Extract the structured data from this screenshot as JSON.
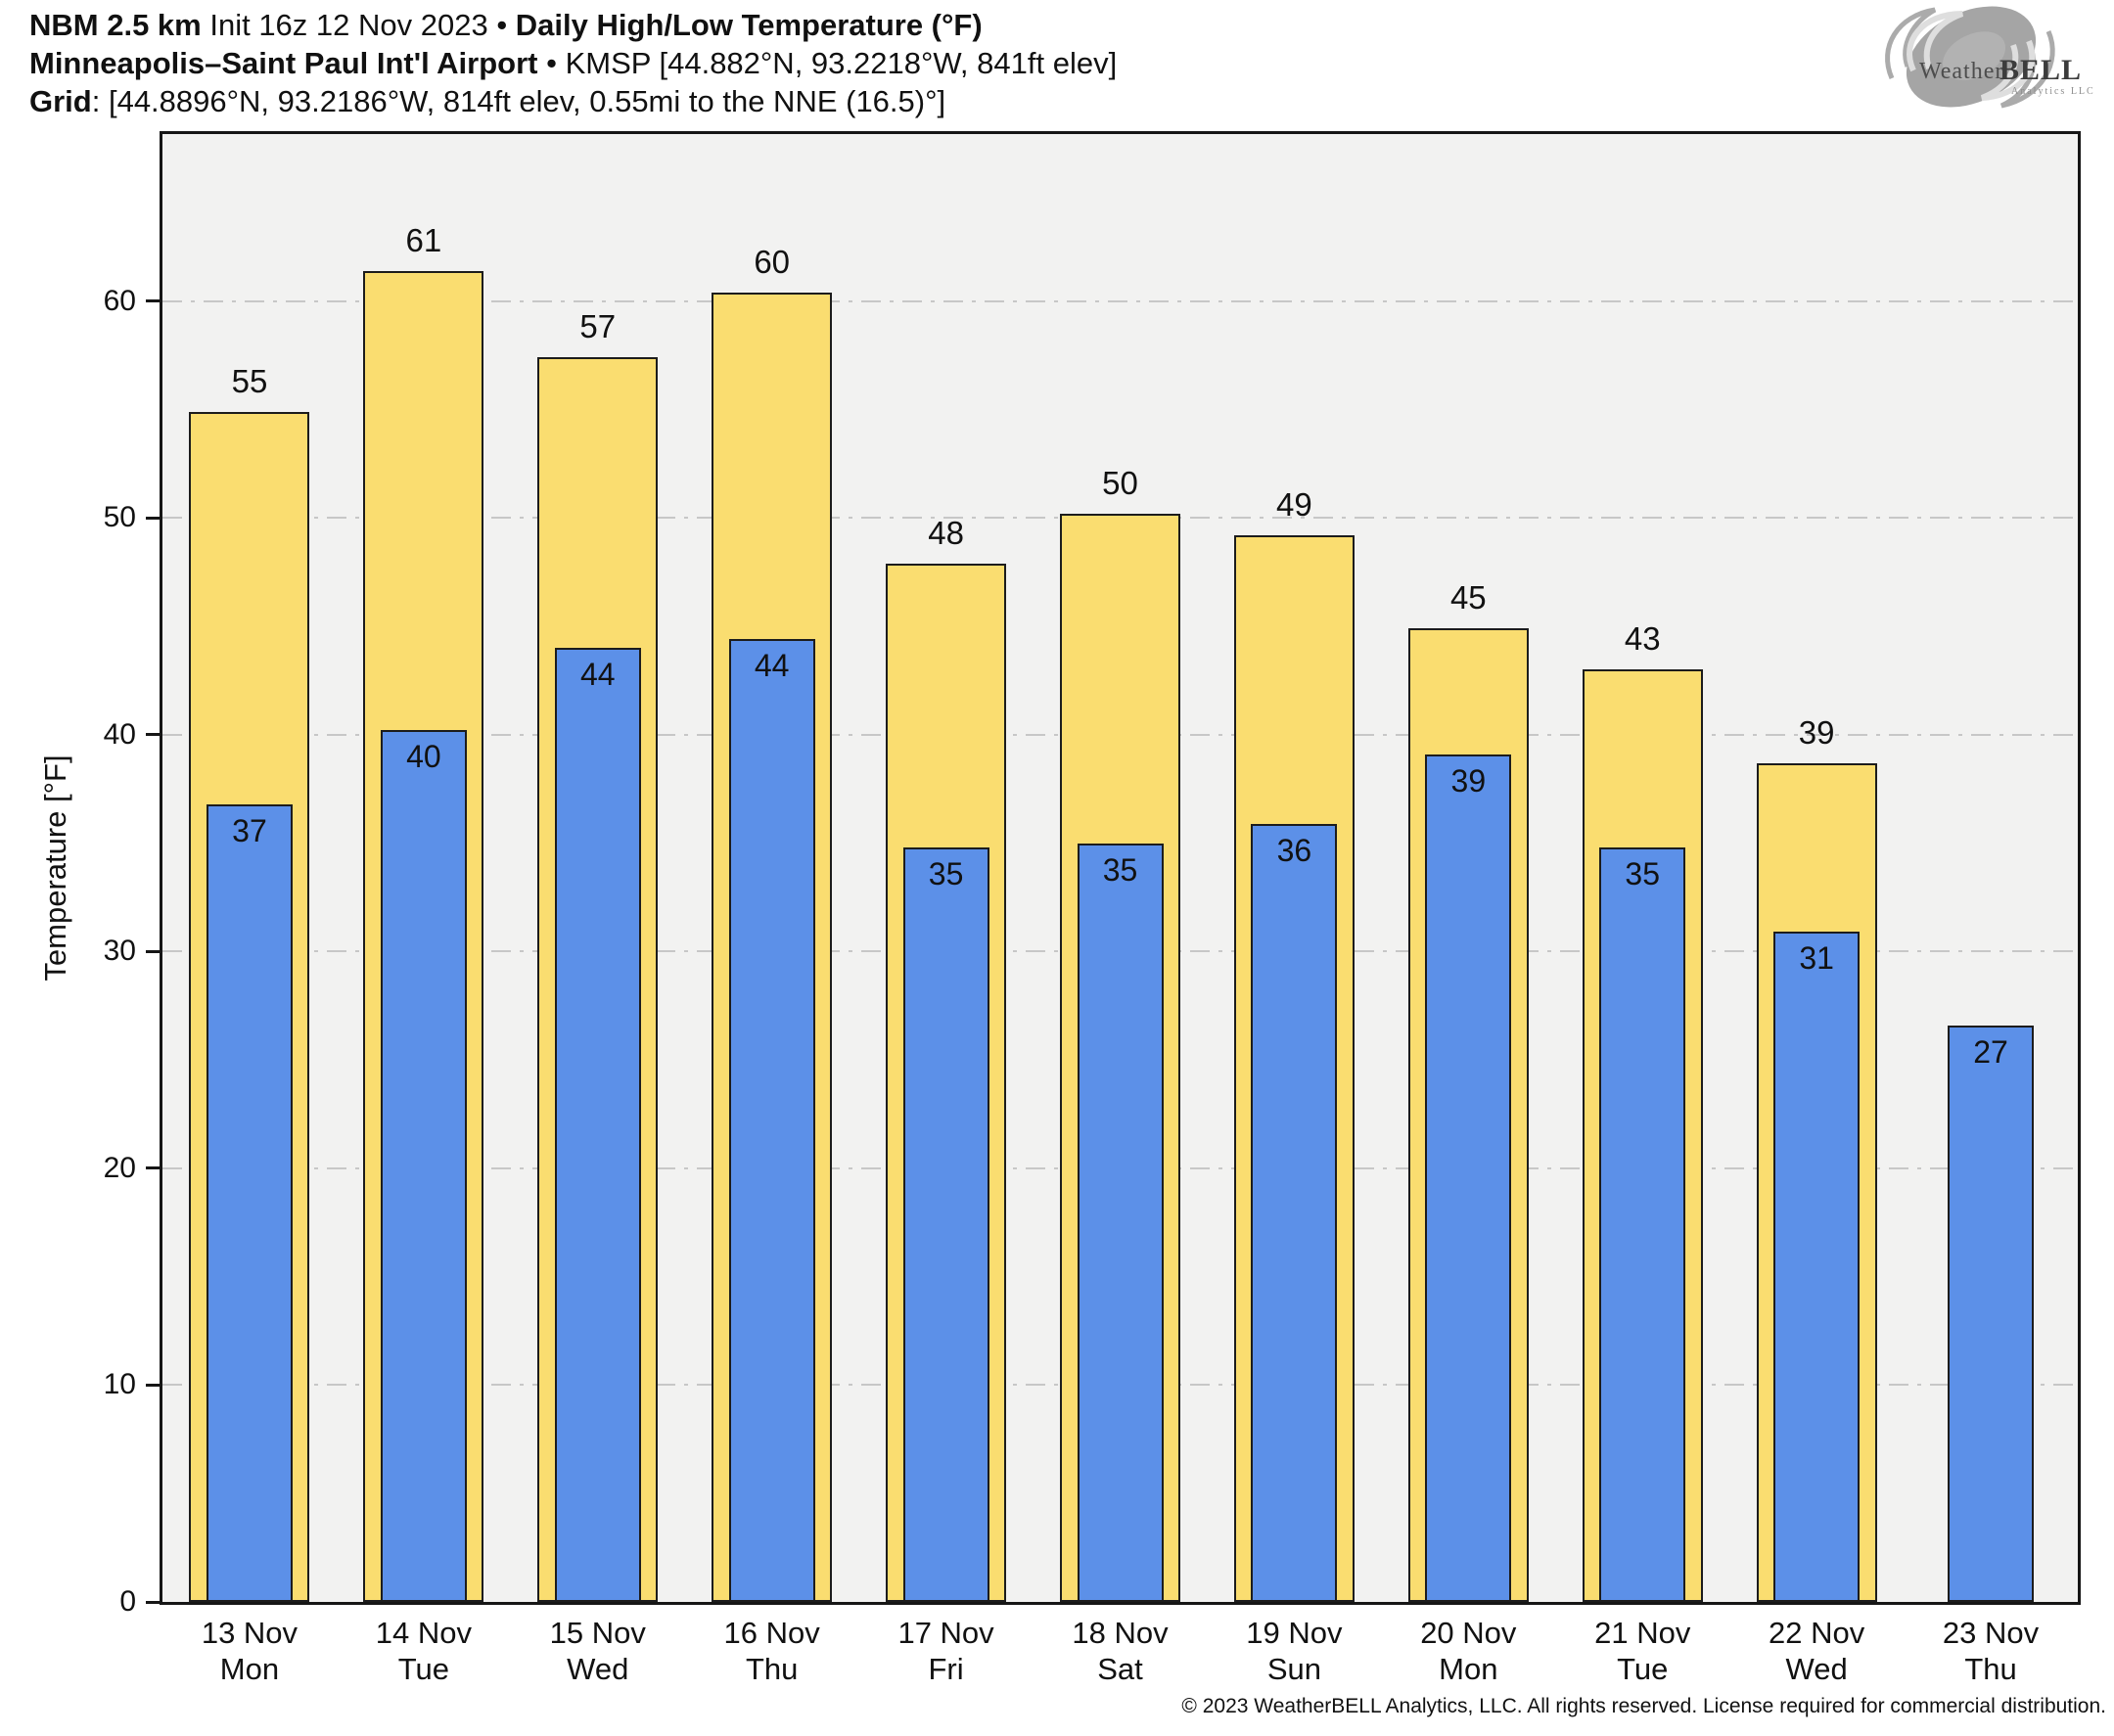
{
  "header": {
    "line1": {
      "model": "NBM 2.5 km",
      "middle": " Init 16z 12 Nov 2023 • ",
      "title": "Daily High/Low Temperature (°F)"
    },
    "line2": {
      "station": "Minneapolis–Saint Paul Int'l Airport",
      "rest": " • KMSP [44.882°N, 93.2218°W, 841ft elev]"
    },
    "line3": {
      "label": "Grid",
      "rest": ": [44.8896°N, 93.2186°W, 814ft elev, 0.55mi to the NNE (16.5)°]"
    }
  },
  "logo": {
    "brand_weather": "Weather",
    "brand_bell": "BELL",
    "subtitle": "Analytics LLC"
  },
  "chart_data": {
    "type": "bar",
    "title": "Daily High/Low Temperature (°F)",
    "xlabel": "",
    "ylabel": "Temperature [°F]",
    "ylim": [
      0,
      67.7
    ],
    "yticks": [
      0,
      10,
      20,
      30,
      40,
      50,
      60
    ],
    "grid": "horizontal dash-dot",
    "legend": "none",
    "categories": [
      {
        "date": "13 Nov",
        "day": "Mon"
      },
      {
        "date": "14 Nov",
        "day": "Tue"
      },
      {
        "date": "15 Nov",
        "day": "Wed"
      },
      {
        "date": "16 Nov",
        "day": "Thu"
      },
      {
        "date": "17 Nov",
        "day": "Fri"
      },
      {
        "date": "18 Nov",
        "day": "Sat"
      },
      {
        "date": "19 Nov",
        "day": "Sun"
      },
      {
        "date": "20 Nov",
        "day": "Mon"
      },
      {
        "date": "21 Nov",
        "day": "Tue"
      },
      {
        "date": "22 Nov",
        "day": "Wed"
      },
      {
        "date": "23 Nov",
        "day": "Thu"
      }
    ],
    "series": [
      {
        "name": "Daily High",
        "color": "#fadd70",
        "values": [
          55,
          61,
          57,
          60,
          48,
          50,
          49,
          45,
          43,
          39,
          null
        ],
        "exact": [
          54.9,
          61.4,
          57.4,
          60.4,
          47.9,
          50.2,
          49.2,
          44.9,
          43.0,
          38.7,
          null
        ]
      },
      {
        "name": "Daily Low",
        "color": "#5c90e8",
        "values": [
          37,
          40,
          44,
          44,
          35,
          35,
          36,
          39,
          35,
          31,
          27
        ],
        "exact": [
          36.8,
          40.2,
          44.0,
          44.4,
          34.8,
          35.0,
          35.9,
          39.1,
          34.8,
          30.9,
          26.6
        ]
      }
    ],
    "colors": {
      "plot_bg": "#f2f2f1",
      "gridline": "#c7c7c7",
      "bar_edge": "#1c1c1c"
    }
  },
  "footer": {
    "copyright": "© 2023 WeatherBELL Analytics, LLC. All rights reserved. License required for commercial distribution."
  }
}
